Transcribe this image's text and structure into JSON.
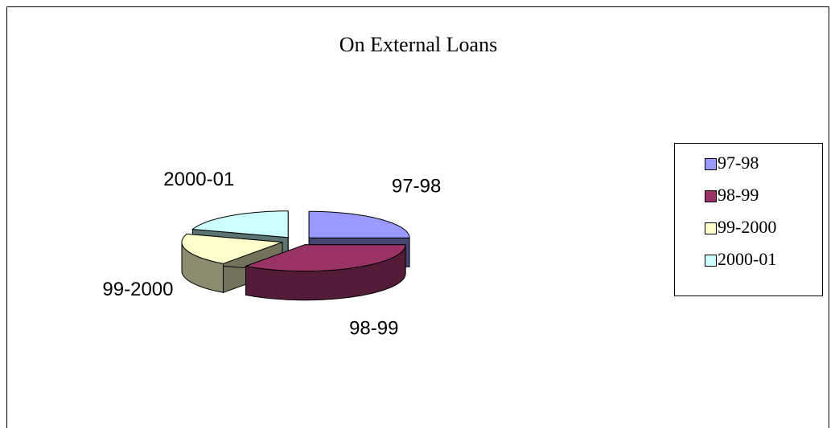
{
  "chart_data": {
    "type": "pie",
    "title": "On External Loans",
    "categories": [
      "97-98",
      "98-99",
      "99-2000",
      "2000-01"
    ],
    "values": [
      25,
      35,
      20,
      20
    ],
    "colors": [
      "#9999ff",
      "#993366",
      "#ffffcc",
      "#ccffff"
    ],
    "legend": "right"
  }
}
